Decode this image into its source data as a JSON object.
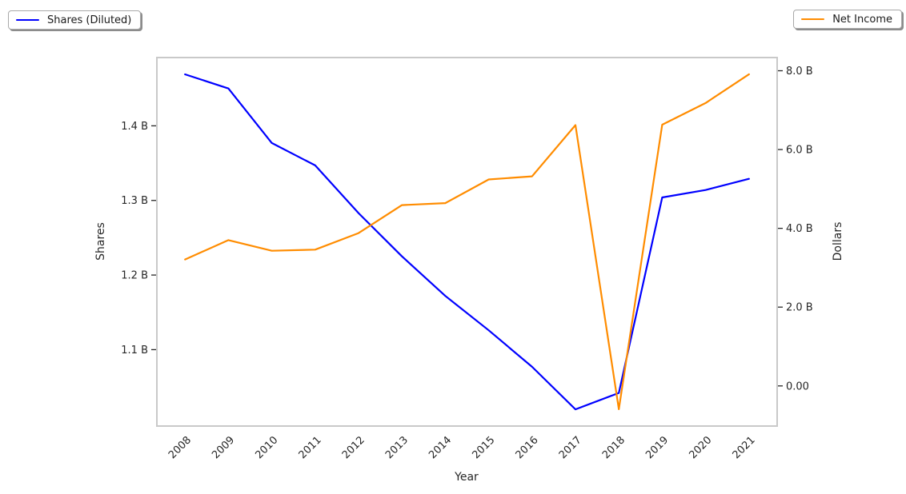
{
  "figure": {
    "legend_left": {
      "label": "Shares (Diluted)"
    },
    "legend_right": {
      "label": "Net Income"
    }
  },
  "chart_data": {
    "type": "line",
    "title": "",
    "grid": false,
    "x_axis": {
      "label": "Year",
      "range": [
        2007.35,
        2021.65
      ],
      "tick_labels": [
        "2008",
        "2009",
        "2010",
        "2011",
        "2012",
        "2013",
        "2014",
        "2015",
        "2016",
        "2017",
        "2018",
        "2019",
        "2020",
        "2021"
      ],
      "tick_rotation_deg": 45
    },
    "left_axis": {
      "label": "Shares",
      "tick_labels": [
        "1.4 B",
        "1.3 B",
        "1.2 B",
        "1.1 B"
      ],
      "tick_values": [
        1.4,
        1.3,
        1.2,
        1.1
      ],
      "range": [
        0.9976,
        1.4915
      ],
      "units": "billions of shares"
    },
    "right_axis": {
      "label": "Dollars",
      "tick_labels": [
        "8.0 B",
        "6.0 B",
        "4.0 B",
        "2.0 B",
        "0.00"
      ],
      "tick_values": [
        8.0,
        6.0,
        4.0,
        2.0,
        0.0
      ],
      "range": [
        -1.019,
        8.335
      ],
      "units": "billions of dollars"
    },
    "x": [
      2008,
      2009,
      2010,
      2011,
      2012,
      2013,
      2014,
      2015,
      2016,
      2017,
      2018,
      2019,
      2020,
      2021
    ],
    "series": [
      {
        "name": "Shares (Diluted)",
        "axis": "left",
        "color": "#0000ff",
        "legend_position": "top-left",
        "values": [
          1.469,
          1.45,
          1.377,
          1.347,
          1.283,
          1.225,
          1.172,
          1.126,
          1.077,
          1.02,
          1.042,
          1.304,
          1.314,
          1.329
        ]
      },
      {
        "name": "Net Income",
        "axis": "right",
        "color": "#ff8c00",
        "legend_position": "top-right",
        "values": [
          3.21,
          3.7,
          3.43,
          3.46,
          3.88,
          4.59,
          4.64,
          5.24,
          5.32,
          6.62,
          -0.59,
          6.63,
          7.18,
          7.91
        ]
      }
    ]
  }
}
